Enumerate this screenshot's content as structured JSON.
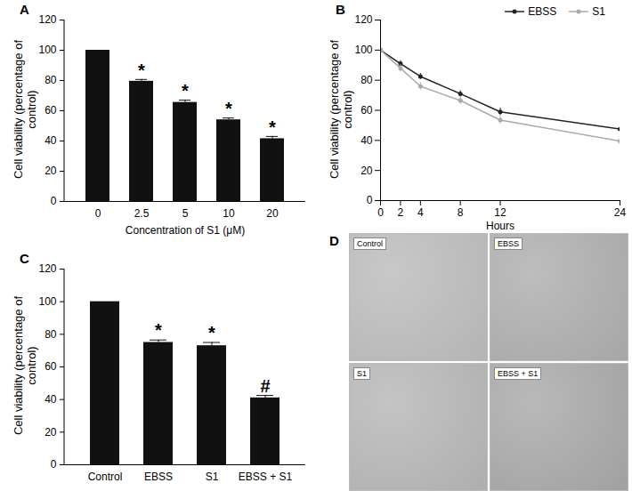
{
  "chart_data": [
    {
      "type": "bar",
      "panel": "A",
      "categories": [
        "0",
        "2.5",
        "5",
        "10",
        "20"
      ],
      "values": [
        100,
        79.5,
        65.5,
        54,
        41.5
      ],
      "errors": [
        0,
        1.2,
        1.5,
        1.2,
        1.5
      ],
      "annotations": [
        null,
        "*",
        "*",
        "*",
        "*"
      ],
      "color": "#111111",
      "xlabel": "Concentration of S1 (μM)",
      "ylabel": "Cell viability (percentage of control)",
      "ylim": [
        0,
        120
      ],
      "yticks": [
        0,
        20,
        40,
        60,
        80,
        100,
        120
      ],
      "grid": false
    },
    {
      "type": "line",
      "panel": "B",
      "x": [
        0,
        2,
        4,
        8,
        12,
        24
      ],
      "series": [
        {
          "name": "EBSS",
          "color": "#222222",
          "marker": "circle",
          "values": [
            100,
            91,
            82.5,
            71,
            59,
            47.5
          ],
          "errors": [
            0,
            2,
            2,
            2,
            2.5,
            1.5
          ]
        },
        {
          "name": "S1",
          "color": "#aaaaaa",
          "marker": "circle",
          "values": [
            100,
            88,
            76,
            66.5,
            53.5,
            39.5
          ],
          "errors": [
            0,
            2.5,
            2.5,
            2.5,
            2.5,
            2.5
          ]
        }
      ],
      "xlabel": "Hours",
      "ylabel": "Cell viability (percentage of control)",
      "xlim": [
        0,
        24
      ],
      "xticks": [
        0,
        2,
        4,
        8,
        12,
        24
      ],
      "ylim": [
        0,
        120
      ],
      "yticks": [
        0,
        20,
        40,
        60,
        80,
        100,
        120
      ],
      "legend": "top-right",
      "grid": false
    },
    {
      "type": "bar",
      "panel": "C",
      "categories": [
        "Control",
        "EBSS",
        "S1",
        "EBSS + S1"
      ],
      "values": [
        100,
        75,
        73,
        41
      ],
      "errors": [
        0,
        1.5,
        2,
        1.5
      ],
      "annotations": [
        null,
        "*",
        "*",
        "#"
      ],
      "color": "#111111",
      "ylabel": "Cell viability (percentage of control)",
      "ylim": [
        0,
        120
      ],
      "yticks": [
        0,
        20,
        40,
        60,
        80,
        100,
        120
      ],
      "grid": false
    },
    {
      "type": "image_grid",
      "panel": "D",
      "labels": [
        "Control",
        "EBSS",
        "S1",
        "EBSS + S1"
      ]
    }
  ]
}
